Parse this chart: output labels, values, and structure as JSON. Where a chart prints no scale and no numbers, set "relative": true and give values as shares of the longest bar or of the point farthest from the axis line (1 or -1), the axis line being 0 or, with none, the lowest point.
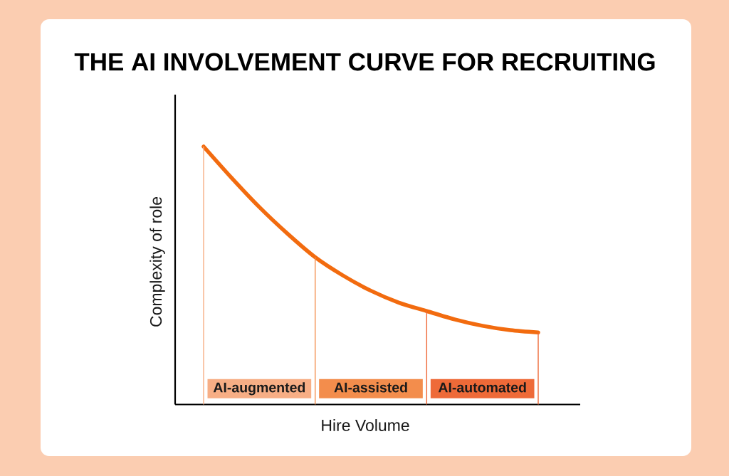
{
  "chart_data": {
    "type": "line",
    "title": "THE AI INVOLVEMENT CURVE FOR RECRUITING",
    "xlabel": "Hire Volume",
    "ylabel": "Complexity of role",
    "categories": [
      null,
      null,
      null,
      null,
      null,
      null,
      null,
      null,
      null,
      null,
      null,
      null,
      null
    ],
    "series": [
      {
        "color": "#f26b0f",
        "values": [
          1,
          0.879,
          0.765,
          0.663,
          0.571,
          0.5,
          0.441,
          0.395,
          0.362,
          0.33,
          0.305,
          0.288,
          0.279
        ]
      }
    ],
    "relative": true,
    "marker": "none",
    "line_style": "solid",
    "annotations": [
      "AI-augmented",
      "AI-assisted",
      "AI-automated"
    ]
  }
}
